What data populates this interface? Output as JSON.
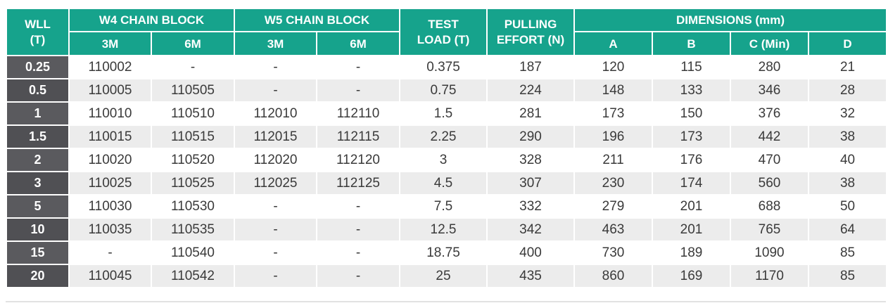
{
  "table": {
    "headers": {
      "wll": "WLL",
      "wll_unit": "(T)",
      "w4": "W4 CHAIN BLOCK",
      "w5": "W5 CHAIN BLOCK",
      "test_load": "TEST LOAD (T)",
      "pulling_effort": "PULLING EFFORT (N)",
      "dimensions": "DIMENSIONS (mm)",
      "w4_3m": "3M",
      "w4_6m": "6M",
      "w5_3m": "3M",
      "w5_6m": "6M",
      "dim_a": "A",
      "dim_b": "B",
      "dim_c": "C (Min)",
      "dim_d": "D"
    },
    "rows": [
      [
        "0.25",
        "110002",
        "-",
        "-",
        "-",
        "0.375",
        "187",
        "120",
        "115",
        "280",
        "21"
      ],
      [
        "0.5",
        "110005",
        "110505",
        "-",
        "-",
        "0.75",
        "224",
        "148",
        "133",
        "346",
        "28"
      ],
      [
        "1",
        "110010",
        "110510",
        "112010",
        "112110",
        "1.5",
        "281",
        "173",
        "150",
        "376",
        "32"
      ],
      [
        "1.5",
        "110015",
        "110515",
        "112015",
        "112115",
        "2.25",
        "290",
        "196",
        "173",
        "442",
        "38"
      ],
      [
        "2",
        "110020",
        "110520",
        "112020",
        "112120",
        "3",
        "328",
        "211",
        "176",
        "470",
        "40"
      ],
      [
        "3",
        "110025",
        "110525",
        "112025",
        "112125",
        "4.5",
        "307",
        "230",
        "174",
        "560",
        "38"
      ],
      [
        "5",
        "110030",
        "110530",
        "-",
        "-",
        "7.5",
        "332",
        "279",
        "201",
        "688",
        "50"
      ],
      [
        "10",
        "110035",
        "110535",
        "-",
        "-",
        "12.5",
        "342",
        "463",
        "201",
        "765",
        "64"
      ],
      [
        "15",
        "-",
        "110540",
        "-",
        "-",
        "18.75",
        "400",
        "730",
        "189",
        "1090",
        "85"
      ],
      [
        "20",
        "110045",
        "110542",
        "-",
        "-",
        "25",
        "435",
        "860",
        "169",
        "1170",
        "85"
      ]
    ]
  },
  "colors": {
    "header_bg": "#16a38c",
    "wll_column_bg": "#5a5a5e",
    "row_alt_bg": "#ececec"
  }
}
